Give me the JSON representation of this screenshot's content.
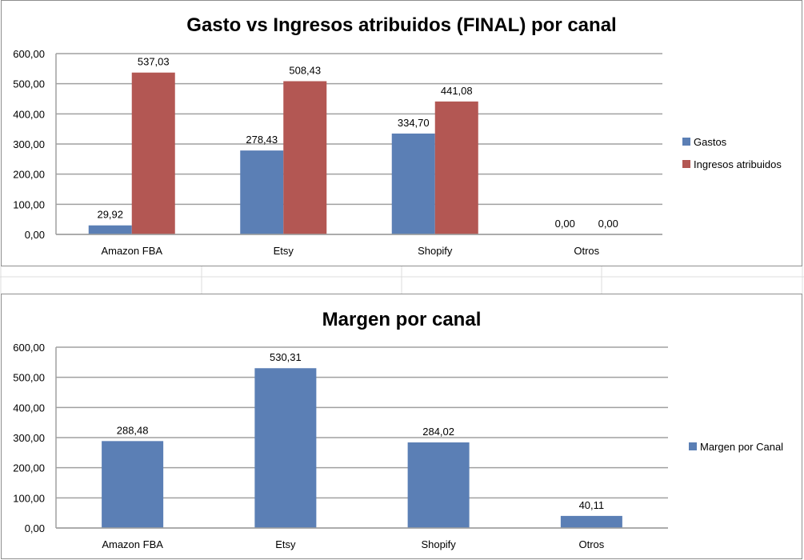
{
  "colors": {
    "gastos": "#5b7fb5",
    "ingresos": "#b35753",
    "margen": "#5b7fb5",
    "gridline": "#a0a0a0",
    "border": "#8e8e8e",
    "sheet_grid": "#dcdcdc"
  },
  "chart_data": [
    {
      "type": "bar",
      "title": "Gasto vs Ingresos atribuidos (FINAL) por canal",
      "categories": [
        "Amazon FBA",
        "Etsy",
        "Shopify",
        "Otros"
      ],
      "series": [
        {
          "name": "Gastos",
          "values": [
            29.92,
            278.43,
            334.7,
            0.0
          ],
          "labels": [
            "29,92",
            "278,43",
            "334,70",
            "0,00"
          ]
        },
        {
          "name": "Ingresos atribuidos",
          "values": [
            537.03,
            508.43,
            441.08,
            0.0
          ],
          "labels": [
            "537,03",
            "508,43",
            "441,08",
            "0,00"
          ]
        }
      ],
      "ylim": [
        0,
        600
      ],
      "yticks": [
        0,
        100,
        200,
        300,
        400,
        500,
        600
      ],
      "ytick_labels": [
        "0,00",
        "100,00",
        "200,00",
        "300,00",
        "400,00",
        "500,00",
        "600,00"
      ],
      "xlabel": "",
      "ylabel": "",
      "grid": true,
      "legend_position": "right"
    },
    {
      "type": "bar",
      "title": "Margen por canal",
      "categories": [
        "Amazon FBA",
        "Etsy",
        "Shopify",
        "Otros"
      ],
      "series": [
        {
          "name": "Margen por Canal",
          "values": [
            288.48,
            530.31,
            284.02,
            40.11
          ],
          "labels": [
            "288,48",
            "530,31",
            "284,02",
            "40,11"
          ]
        }
      ],
      "ylim": [
        0,
        600
      ],
      "yticks": [
        0,
        100,
        200,
        300,
        400,
        500,
        600
      ],
      "ytick_labels": [
        "0,00",
        "100,00",
        "200,00",
        "300,00",
        "400,00",
        "500,00",
        "600,00"
      ],
      "xlabel": "",
      "ylabel": "",
      "grid": true,
      "legend_position": "right"
    }
  ]
}
